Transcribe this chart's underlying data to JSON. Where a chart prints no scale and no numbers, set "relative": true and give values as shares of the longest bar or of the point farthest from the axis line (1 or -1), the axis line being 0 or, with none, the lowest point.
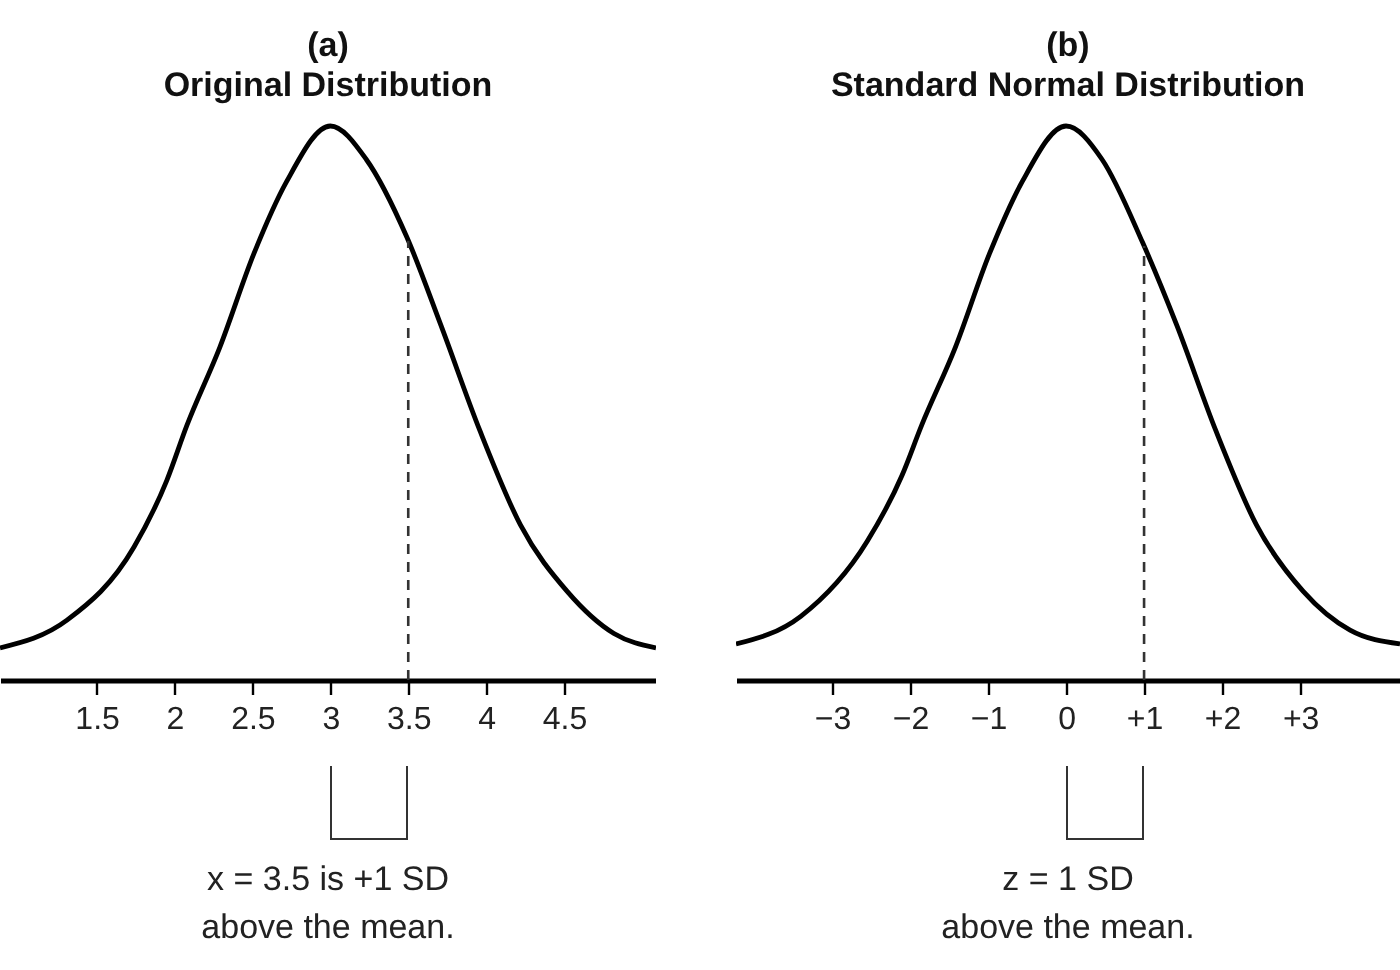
{
  "chart_data": [
    {
      "type": "line",
      "title": "(a)",
      "subtitle": "Original Distribution",
      "relative": true,
      "x": [
        0.88,
        1.31,
        1.74,
        1.95,
        2.08,
        2.29,
        2.51,
        2.72,
        3,
        3.23,
        3.49,
        3.71,
        3.96,
        4.22,
        4.52,
        4.82,
        5.09
      ],
      "series": [
        {
          "color": "#000000",
          "values": [
            0.058,
            0.108,
            0.24,
            0.36,
            0.46,
            0.6,
            0.77,
            0.9,
            1,
            0.94,
            0.8,
            0.64,
            0.45,
            0.28,
            0.16,
            0.084,
            0.058
          ]
        }
      ],
      "xlim": [
        0.88,
        5.09
      ],
      "xticks": [
        1.5,
        2,
        2.5,
        3,
        3.5,
        4,
        4.5
      ],
      "ref_lines": [
        {
          "axis": "x",
          "value": 3.5,
          "line_style": "dashed"
        }
      ],
      "annotations": [
        "x = 3.5 is +1 SD\nabove the mean."
      ]
    },
    {
      "type": "line",
      "title": "(b)",
      "subtitle": "Standard Normal Distribution",
      "relative": true,
      "x": [
        -4.23,
        -3.4,
        -2.55,
        -2.1,
        -1.85,
        -1.42,
        -0.98,
        -0.56,
        0,
        0.46,
        0.98,
        1.42,
        1.92,
        2.44,
        3.04,
        3.64,
        4.28
      ],
      "series": [
        {
          "color": "#000000",
          "values": [
            0.065,
            0.115,
            0.25,
            0.37,
            0.46,
            0.6,
            0.77,
            0.9,
            1,
            0.94,
            0.79,
            0.64,
            0.45,
            0.28,
            0.16,
            0.09,
            0.065
          ]
        }
      ],
      "xlim": [
        -4.23,
        4.28
      ],
      "xticks": [
        {
          "value": -3,
          "label": "−3"
        },
        {
          "value": -2,
          "label": "−2"
        },
        {
          "value": -1,
          "label": "−1"
        },
        0,
        {
          "value": 1,
          "label": "+1"
        },
        {
          "value": 2,
          "label": "+2"
        },
        {
          "value": 3,
          "label": "+3"
        }
      ],
      "ref_lines": [
        {
          "axis": "x",
          "value": 1,
          "line_style": "dashed"
        }
      ],
      "annotations": [
        "z = 1 SD\nabove the mean."
      ]
    }
  ]
}
